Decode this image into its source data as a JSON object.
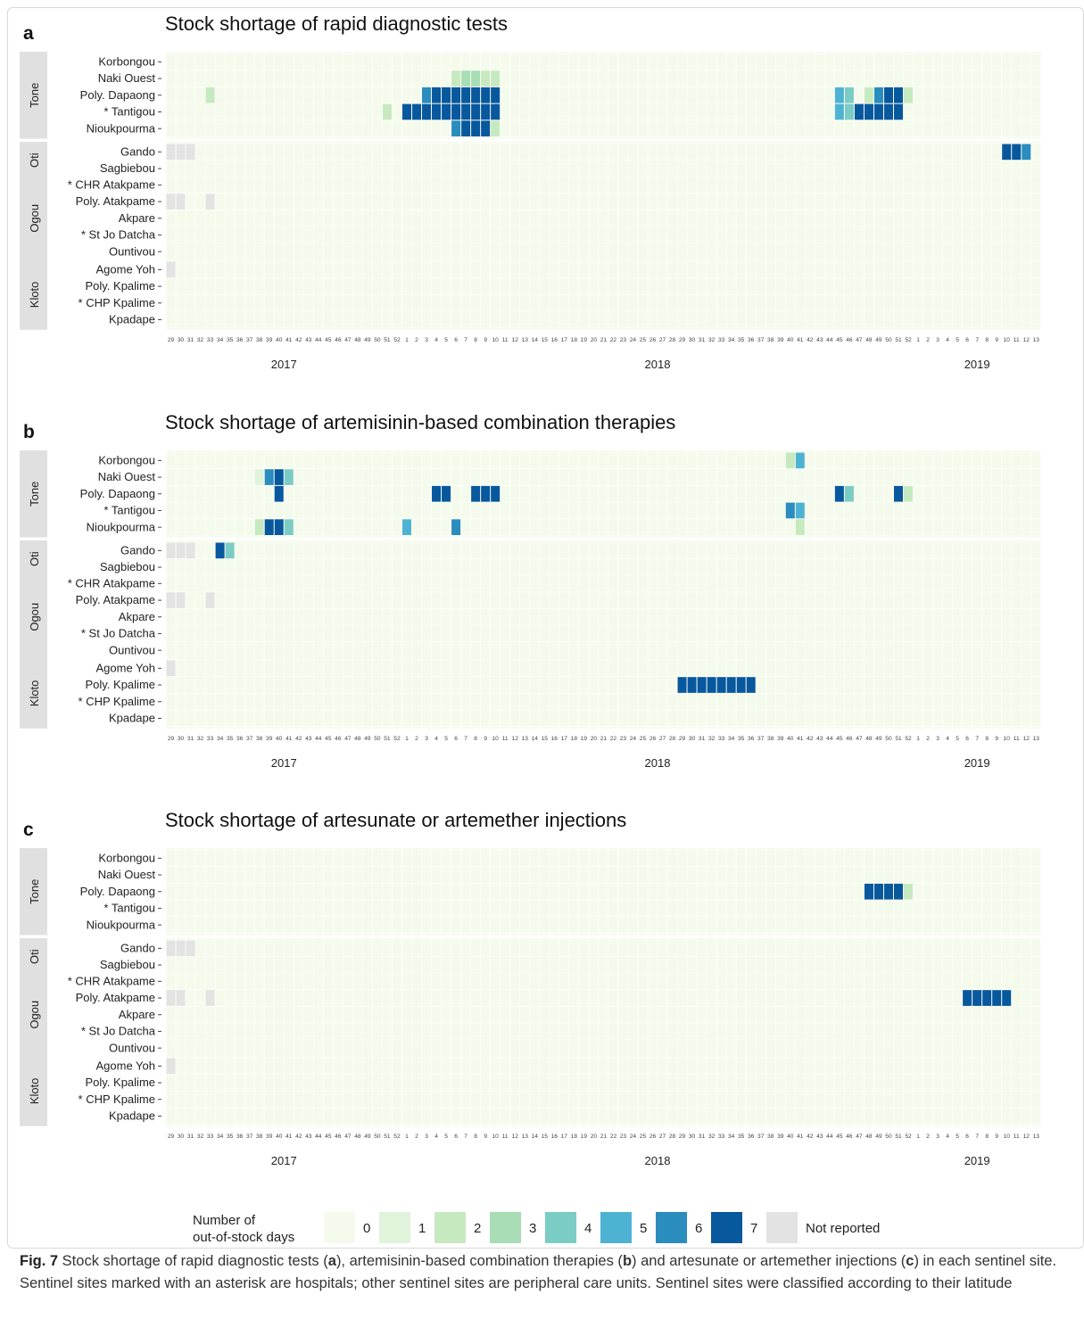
{
  "chart_data": [
    {
      "type": "heatmap",
      "panel": "a",
      "title": "Stock shortage of rapid diagnostic tests",
      "cells": [
        {
          "site": "Naki Ouest",
          "week": "2018-6",
          "value": 2
        },
        {
          "site": "Naki Ouest",
          "week": "2018-7",
          "value": 3
        },
        {
          "site": "Naki Ouest",
          "week": "2018-8",
          "value": 3
        },
        {
          "site": "Naki Ouest",
          "week": "2018-9",
          "value": 2
        },
        {
          "site": "Naki Ouest",
          "week": "2018-10",
          "value": 2
        },
        {
          "site": "Poly. Dapaong",
          "week": "2017-33",
          "value": 2
        },
        {
          "site": "Poly. Dapaong",
          "week": "2018-3",
          "value": 6
        },
        {
          "site": "Poly. Dapaong",
          "week": "2018-4",
          "value": 7
        },
        {
          "site": "Poly. Dapaong",
          "week": "2018-5",
          "value": 7
        },
        {
          "site": "Poly. Dapaong",
          "week": "2018-6",
          "value": 7
        },
        {
          "site": "Poly. Dapaong",
          "week": "2018-7",
          "value": 7
        },
        {
          "site": "Poly. Dapaong",
          "week": "2018-8",
          "value": 7
        },
        {
          "site": "Poly. Dapaong",
          "week": "2018-9",
          "value": 7
        },
        {
          "site": "Poly. Dapaong",
          "week": "2018-10",
          "value": 7
        },
        {
          "site": "Poly. Dapaong",
          "week": "2018-45",
          "value": 5
        },
        {
          "site": "Poly. Dapaong",
          "week": "2018-46",
          "value": 4
        },
        {
          "site": "Poly. Dapaong",
          "week": "2018-48",
          "value": 2
        },
        {
          "site": "Poly. Dapaong",
          "week": "2018-49",
          "value": 6
        },
        {
          "site": "Poly. Dapaong",
          "week": "2018-50",
          "value": 7
        },
        {
          "site": "Poly. Dapaong",
          "week": "2018-51",
          "value": 7
        },
        {
          "site": "Poly. Dapaong",
          "week": "2018-52",
          "value": 2
        },
        {
          "site": "* Tantigou",
          "week": "2017-51",
          "value": 2
        },
        {
          "site": "* Tantigou",
          "week": "2018-1",
          "value": 7
        },
        {
          "site": "* Tantigou",
          "week": "2018-2",
          "value": 7
        },
        {
          "site": "* Tantigou",
          "week": "2018-3",
          "value": 7
        },
        {
          "site": "* Tantigou",
          "week": "2018-4",
          "value": 7
        },
        {
          "site": "* Tantigou",
          "week": "2018-5",
          "value": 7
        },
        {
          "site": "* Tantigou",
          "week": "2018-6",
          "value": 7
        },
        {
          "site": "* Tantigou",
          "week": "2018-7",
          "value": 7
        },
        {
          "site": "* Tantigou",
          "week": "2018-8",
          "value": 7
        },
        {
          "site": "* Tantigou",
          "week": "2018-9",
          "value": 7
        },
        {
          "site": "* Tantigou",
          "week": "2018-10",
          "value": 7
        },
        {
          "site": "* Tantigou",
          "week": "2018-45",
          "value": 5
        },
        {
          "site": "* Tantigou",
          "week": "2018-46",
          "value": 4
        },
        {
          "site": "* Tantigou",
          "week": "2018-47",
          "value": 7
        },
        {
          "site": "* Tantigou",
          "week": "2018-48",
          "value": 7
        },
        {
          "site": "* Tantigou",
          "week": "2018-49",
          "value": 7
        },
        {
          "site": "* Tantigou",
          "week": "2018-50",
          "value": 7
        },
        {
          "site": "* Tantigou",
          "week": "2018-51",
          "value": 7
        },
        {
          "site": "Nioukpourma",
          "week": "2018-6",
          "value": 6
        },
        {
          "site": "Nioukpourma",
          "week": "2018-7",
          "value": 7
        },
        {
          "site": "Nioukpourma",
          "week": "2018-8",
          "value": 7
        },
        {
          "site": "Nioukpourma",
          "week": "2018-9",
          "value": 7
        },
        {
          "site": "Nioukpourma",
          "week": "2018-10",
          "value": 2
        },
        {
          "site": "Gando",
          "week": "2017-29",
          "value": "NR"
        },
        {
          "site": "Gando",
          "week": "2017-30",
          "value": "NR"
        },
        {
          "site": "Gando",
          "week": "2017-31",
          "value": "NR"
        },
        {
          "site": "Gando",
          "week": "2019-10",
          "value": 7
        },
        {
          "site": "Gando",
          "week": "2019-11",
          "value": 7
        },
        {
          "site": "Gando",
          "week": "2019-12",
          "value": 6
        },
        {
          "site": "Poly. Atakpame",
          "week": "2017-29",
          "value": "NR"
        },
        {
          "site": "Poly. Atakpame",
          "week": "2017-30",
          "value": "NR"
        },
        {
          "site": "Poly. Atakpame",
          "week": "2017-33",
          "value": "NR"
        },
        {
          "site": "Agome Yoh",
          "week": "2017-29",
          "value": "NR"
        }
      ]
    },
    {
      "type": "heatmap",
      "panel": "b",
      "title": "Stock shortage of artemisinin-based combination therapies",
      "cells": [
        {
          "site": "Korbongou",
          "week": "2018-40",
          "value": 2
        },
        {
          "site": "Korbongou",
          "week": "2018-41",
          "value": 5
        },
        {
          "site": "Naki Ouest",
          "week": "2017-38",
          "value": 1
        },
        {
          "site": "Naki Ouest",
          "week": "2017-39",
          "value": 6
        },
        {
          "site": "Naki Ouest",
          "week": "2017-40",
          "value": 7
        },
        {
          "site": "Naki Ouest",
          "week": "2017-41",
          "value": 4
        },
        {
          "site": "Poly. Dapaong",
          "week": "2017-40",
          "value": 7
        },
        {
          "site": "Poly. Dapaong",
          "week": "2018-4",
          "value": 7
        },
        {
          "site": "Poly. Dapaong",
          "week": "2018-5",
          "value": 7
        },
        {
          "site": "Poly. Dapaong",
          "week": "2018-8",
          "value": 7
        },
        {
          "site": "Poly. Dapaong",
          "week": "2018-9",
          "value": 7
        },
        {
          "site": "Poly. Dapaong",
          "week": "2018-10",
          "value": 7
        },
        {
          "site": "Poly. Dapaong",
          "week": "2018-45",
          "value": 7
        },
        {
          "site": "Poly. Dapaong",
          "week": "2018-46",
          "value": 4
        },
        {
          "site": "Poly. Dapaong",
          "week": "2018-51",
          "value": 7
        },
        {
          "site": "Poly. Dapaong",
          "week": "2018-52",
          "value": 2
        },
        {
          "site": "* Tantigou",
          "week": "2018-40",
          "value": 6
        },
        {
          "site": "* Tantigou",
          "week": "2018-41",
          "value": 5
        },
        {
          "site": "Nioukpourma",
          "week": "2017-38",
          "value": 2
        },
        {
          "site": "Nioukpourma",
          "week": "2017-39",
          "value": 7
        },
        {
          "site": "Nioukpourma",
          "week": "2017-40",
          "value": 7
        },
        {
          "site": "Nioukpourma",
          "week": "2017-41",
          "value": 4
        },
        {
          "site": "Nioukpourma",
          "week": "2018-1",
          "value": 5
        },
        {
          "site": "Nioukpourma",
          "week": "2018-6",
          "value": 6
        },
        {
          "site": "Nioukpourma",
          "week": "2018-41",
          "value": 2
        },
        {
          "site": "Gando",
          "week": "2017-29",
          "value": "NR"
        },
        {
          "site": "Gando",
          "week": "2017-30",
          "value": "NR"
        },
        {
          "site": "Gando",
          "week": "2017-31",
          "value": "NR"
        },
        {
          "site": "Gando",
          "week": "2017-34",
          "value": 7
        },
        {
          "site": "Gando",
          "week": "2017-35",
          "value": 4
        },
        {
          "site": "Poly. Atakpame",
          "week": "2017-29",
          "value": "NR"
        },
        {
          "site": "Poly. Atakpame",
          "week": "2017-30",
          "value": "NR"
        },
        {
          "site": "Poly. Atakpame",
          "week": "2017-33",
          "value": "NR"
        },
        {
          "site": "Agome Yoh",
          "week": "2017-29",
          "value": "NR"
        },
        {
          "site": "Poly. Kpalime",
          "week": "2018-29",
          "value": 7
        },
        {
          "site": "Poly. Kpalime",
          "week": "2018-30",
          "value": 7
        },
        {
          "site": "Poly. Kpalime",
          "week": "2018-31",
          "value": 7
        },
        {
          "site": "Poly. Kpalime",
          "week": "2018-32",
          "value": 7
        },
        {
          "site": "Poly. Kpalime",
          "week": "2018-33",
          "value": 7
        },
        {
          "site": "Poly. Kpalime",
          "week": "2018-34",
          "value": 7
        },
        {
          "site": "Poly. Kpalime",
          "week": "2018-35",
          "value": 7
        },
        {
          "site": "Poly. Kpalime",
          "week": "2018-36",
          "value": 7
        }
      ]
    },
    {
      "type": "heatmap",
      "panel": "c",
      "title": "Stock shortage of artesunate or artemether injections",
      "cells": [
        {
          "site": "Poly. Dapaong",
          "week": "2018-48",
          "value": 7
        },
        {
          "site": "Poly. Dapaong",
          "week": "2018-49",
          "value": 7
        },
        {
          "site": "Poly. Dapaong",
          "week": "2018-50",
          "value": 7
        },
        {
          "site": "Poly. Dapaong",
          "week": "2018-51",
          "value": 7
        },
        {
          "site": "Poly. Dapaong",
          "week": "2018-52",
          "value": 2
        },
        {
          "site": "Gando",
          "week": "2017-29",
          "value": "NR"
        },
        {
          "site": "Gando",
          "week": "2017-30",
          "value": "NR"
        },
        {
          "site": "Gando",
          "week": "2017-31",
          "value": "NR"
        },
        {
          "site": "Poly. Atakpame",
          "week": "2017-29",
          "value": "NR"
        },
        {
          "site": "Poly. Atakpame",
          "week": "2017-30",
          "value": "NR"
        },
        {
          "site": "Poly. Atakpame",
          "week": "2017-33",
          "value": "NR"
        },
        {
          "site": "Poly. Atakpame",
          "week": "2019-6",
          "value": 7
        },
        {
          "site": "Poly. Atakpame",
          "week": "2019-7",
          "value": 7
        },
        {
          "site": "Poly. Atakpame",
          "week": "2019-8",
          "value": 7
        },
        {
          "site": "Poly. Atakpame",
          "week": "2019-9",
          "value": 7
        },
        {
          "site": "Poly. Atakpame",
          "week": "2019-10",
          "value": 7
        },
        {
          "site": "Agome Yoh",
          "week": "2017-29",
          "value": "NR"
        }
      ]
    }
  ],
  "regions": [
    {
      "name": "Tone",
      "sites": [
        "Korbongou",
        "Naki Ouest",
        "Poly. Dapaong",
        "* Tantigou",
        "Nioukpourma"
      ]
    },
    {
      "name": "Oti",
      "sites": [
        "Gando",
        "Sagbiebou"
      ]
    },
    {
      "name": "Ogou",
      "sites": [
        "* CHR Atakpame",
        "Poly. Atakpame",
        "Akpare",
        "* St Jo Datcha",
        "Ountivou"
      ]
    },
    {
      "name": "Kloto",
      "sites": [
        "Agome Yoh",
        "Poly. Kpalime",
        "* CHP Kpalime",
        "Kpadape"
      ]
    }
  ],
  "years": [
    {
      "year": "2017",
      "weeks": [
        29,
        30,
        31,
        32,
        33,
        34,
        35,
        36,
        37,
        38,
        39,
        40,
        41,
        42,
        43,
        44,
        45,
        46,
        47,
        48,
        49,
        50,
        51,
        52
      ]
    },
    {
      "year": "2018",
      "weeks": [
        1,
        2,
        3,
        4,
        5,
        6,
        7,
        8,
        9,
        10,
        11,
        12,
        13,
        14,
        15,
        16,
        17,
        18,
        19,
        20,
        21,
        22,
        23,
        24,
        25,
        26,
        27,
        28,
        29,
        30,
        31,
        32,
        33,
        34,
        35,
        36,
        37,
        38,
        39,
        40,
        41,
        42,
        43,
        44,
        45,
        46,
        47,
        48,
        49,
        50,
        51,
        52
      ]
    },
    {
      "year": "2019",
      "weeks": [
        1,
        2,
        3,
        4,
        5,
        6,
        7,
        8,
        9,
        10,
        11,
        12,
        13
      ]
    }
  ],
  "legend": {
    "title_line1": "Number of",
    "title_line2": "out-of-stock days",
    "items": [
      {
        "label": "0",
        "color": "#f5fbec"
      },
      {
        "label": "1",
        "color": "#e0f3db"
      },
      {
        "label": "2",
        "color": "#c7e9c0"
      },
      {
        "label": "3",
        "color": "#a8ddb5"
      },
      {
        "label": "4",
        "color": "#7bccc4"
      },
      {
        "label": "5",
        "color": "#4eb3d3"
      },
      {
        "label": "6",
        "color": "#2b8cbe"
      },
      {
        "label": "7",
        "color": "#08589e"
      },
      {
        "label": "Not reported",
        "color": "#e3e3e3"
      }
    ]
  },
  "colors": {
    "strip": "#e0e0e0",
    "grid": "#ffffff",
    "axis_text": "#444444"
  },
  "caption": {
    "fig_label": "Fig. 7",
    "text_a": " Stock shortage of rapid diagnostic tests (",
    "b1": "a",
    "text_b": "), artemisinin-based combination therapies (",
    "b2": "b",
    "text_c": ") and artesunate or artemether injections (",
    "b3": "c",
    "text_d": ") in each sentinel site. Sentinel sites marked with an asterisk are hospitals; other sentinel sites are peripheral care units. Sentinel sites were classified according to their latitude"
  }
}
